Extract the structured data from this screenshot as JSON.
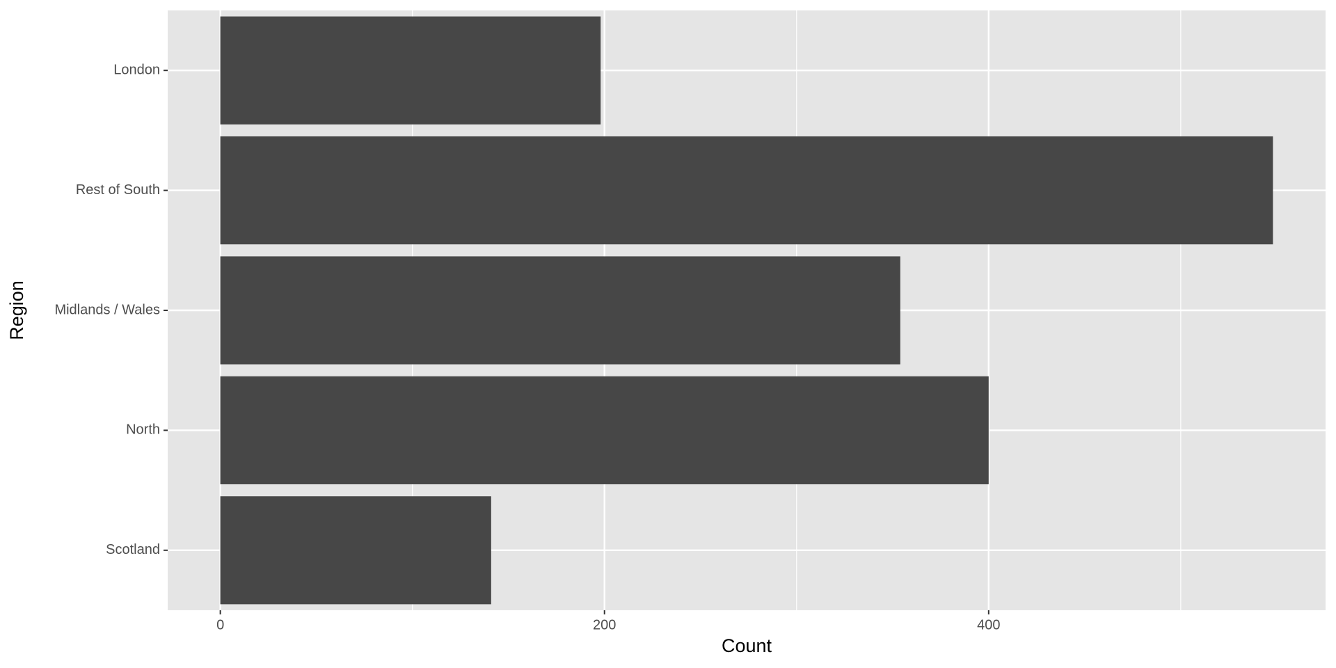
{
  "chart_data": {
    "type": "bar",
    "orientation": "horizontal",
    "categories": [
      "London",
      "Rest of South",
      "Midlands / Wales",
      "North",
      "Scotland"
    ],
    "values": [
      198,
      548,
      354,
      400,
      141
    ],
    "color": "#474747",
    "xlim": [
      -27.4,
      575.4
    ],
    "xticks": [
      0,
      200,
      400
    ],
    "xminor": [
      100,
      300,
      500
    ],
    "xlabel": "Count",
    "ylabel": "Region",
    "grid": true
  }
}
